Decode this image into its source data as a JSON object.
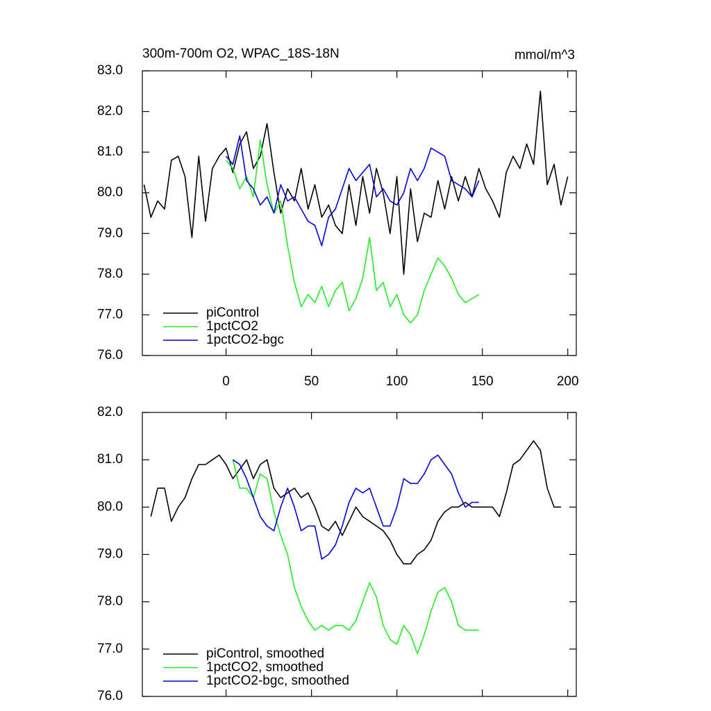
{
  "chart_data": [
    {
      "type": "line",
      "title": "300m-700m O2, WPAC_18S-18N",
      "unit_label": "mmol/m^3",
      "xlim": [
        -49,
        205
      ],
      "ylim": [
        76,
        83
      ],
      "xticks": [
        0,
        50,
        100,
        150,
        200
      ],
      "show_xtick_labels": true,
      "yticks": [
        {
          "value": 76,
          "label": "76.0"
        },
        {
          "value": 77,
          "label": "77.0"
        },
        {
          "value": 78,
          "label": "78.0"
        },
        {
          "value": 79,
          "label": "79.0"
        },
        {
          "value": 80,
          "label": "80.0"
        },
        {
          "value": 81,
          "label": "81.0"
        },
        {
          "value": 82,
          "label": "82.0"
        },
        {
          "value": 83,
          "label": "83.0"
        }
      ],
      "legend": "lower left",
      "x": [
        -48,
        -44,
        -40,
        -36,
        -32,
        -28,
        -24,
        -20,
        -16,
        -12,
        -8,
        -4,
        0,
        4,
        8,
        12,
        16,
        20,
        24,
        28,
        32,
        36,
        40,
        44,
        48,
        52,
        56,
        60,
        64,
        68,
        72,
        76,
        80,
        84,
        88,
        92,
        96,
        100,
        104,
        108,
        112,
        116,
        120,
        124,
        128,
        132,
        136,
        140,
        144,
        148,
        152,
        156,
        160,
        164,
        168,
        172,
        176,
        180,
        184,
        188,
        192,
        196,
        200
      ],
      "series": [
        {
          "name": "piControl",
          "color": "#000000",
          "values": [
            80.2,
            79.4,
            79.8,
            79.6,
            80.8,
            80.9,
            80.4,
            78.9,
            80.9,
            79.3,
            80.6,
            80.9,
            81.1,
            80.5,
            81.2,
            81.5,
            80.6,
            80.9,
            81.7,
            80.5,
            79.5,
            80.1,
            79.8,
            80.6,
            79.6,
            80.2,
            79.4,
            79.7,
            79.2,
            79.0,
            80.2,
            79.2,
            80.4,
            79.5,
            80.6,
            80.0,
            79.0,
            80.4,
            78.0,
            80.1,
            78.8,
            79.5,
            79.4,
            80.3,
            79.6,
            80.4,
            79.8,
            80.4,
            79.9,
            80.6,
            80.1,
            79.8,
            79.4,
            80.5,
            80.9,
            80.6,
            81.2,
            80.7,
            82.5,
            80.2,
            80.7,
            79.7,
            80.4
          ]
        },
        {
          "name": "1pctCO2",
          "color": "#22ee22",
          "values": [
            null,
            null,
            null,
            null,
            null,
            null,
            null,
            null,
            null,
            null,
            null,
            null,
            80.8,
            80.6,
            80.1,
            80.4,
            79.9,
            81.3,
            80.2,
            79.5,
            79.8,
            78.7,
            77.8,
            77.2,
            77.5,
            77.3,
            77.7,
            77.2,
            77.6,
            77.8,
            77.1,
            77.4,
            77.9,
            78.9,
            77.6,
            77.8,
            77.2,
            77.5,
            77.0,
            76.8,
            77.0,
            77.6,
            78.0,
            78.4,
            78.2,
            77.9,
            77.5,
            77.3,
            77.4,
            77.5,
            null,
            null,
            null,
            null,
            null,
            null,
            null,
            null,
            null,
            null,
            null,
            null,
            null
          ]
        },
        {
          "name": "1pctCO2-bgc",
          "color": "#0000dd",
          "values": [
            null,
            null,
            null,
            null,
            null,
            null,
            null,
            null,
            null,
            null,
            null,
            null,
            80.9,
            80.7,
            81.4,
            80.3,
            80.1,
            79.7,
            79.9,
            79.5,
            80.2,
            79.8,
            79.9,
            79.6,
            79.3,
            79.2,
            78.7,
            79.4,
            79.6,
            80.1,
            80.6,
            80.3,
            80.5,
            80.7,
            79.9,
            80.1,
            79.8,
            79.7,
            80.0,
            80.6,
            80.3,
            80.6,
            81.1,
            81.0,
            80.9,
            80.3,
            80.2,
            80.1,
            79.9,
            80.3,
            null,
            null,
            null,
            null,
            null,
            null,
            null,
            null,
            null,
            null,
            null,
            null,
            null
          ]
        }
      ]
    },
    {
      "type": "line",
      "xlim": [
        -49,
        205
      ],
      "ylim": [
        76,
        82
      ],
      "xticks": [
        0,
        50,
        100,
        150,
        200
      ],
      "show_xtick_labels": false,
      "yticks": [
        {
          "value": 76,
          "label": "76.0"
        },
        {
          "value": 77,
          "label": "77.0"
        },
        {
          "value": 78,
          "label": "78.0"
        },
        {
          "value": 79,
          "label": "79.0"
        },
        {
          "value": 80,
          "label": "80.0"
        },
        {
          "value": 81,
          "label": "81.0"
        },
        {
          "value": 82,
          "label": "82.0"
        }
      ],
      "legend": "lower left",
      "x": [
        -48,
        -44,
        -40,
        -36,
        -32,
        -28,
        -24,
        -20,
        -16,
        -12,
        -8,
        -4,
        0,
        4,
        8,
        12,
        16,
        20,
        24,
        28,
        32,
        36,
        40,
        44,
        48,
        52,
        56,
        60,
        64,
        68,
        72,
        76,
        80,
        84,
        88,
        92,
        96,
        100,
        104,
        108,
        112,
        116,
        120,
        124,
        128,
        132,
        136,
        140,
        144,
        148,
        152,
        156,
        160,
        164,
        168,
        172,
        176,
        180,
        184,
        188,
        192,
        196,
        200
      ],
      "series": [
        {
          "name": "piControl, smoothed",
          "color": "#000000",
          "values": [
            null,
            79.8,
            80.4,
            80.4,
            79.7,
            80.0,
            80.2,
            80.6,
            80.9,
            80.9,
            81.0,
            81.1,
            80.9,
            80.6,
            80.8,
            81.0,
            80.6,
            80.9,
            81.0,
            80.4,
            80.2,
            80.3,
            80.4,
            80.2,
            80.3,
            80.0,
            79.6,
            79.5,
            79.7,
            79.4,
            79.7,
            80.0,
            79.8,
            79.7,
            79.6,
            79.5,
            79.3,
            79.0,
            78.8,
            78.8,
            79.0,
            79.1,
            79.3,
            79.7,
            79.9,
            80.0,
            80.0,
            80.1,
            80.0,
            80.0,
            80.0,
            80.0,
            79.8,
            80.3,
            80.9,
            81.0,
            81.2,
            81.4,
            81.2,
            80.4,
            80.0,
            80.0,
            null
          ]
        },
        {
          "name": "1pctCO2, smoothed",
          "color": "#22ee22",
          "values": [
            null,
            null,
            null,
            null,
            null,
            null,
            null,
            null,
            null,
            null,
            null,
            null,
            null,
            81.0,
            80.4,
            80.4,
            80.2,
            80.7,
            80.6,
            79.9,
            79.4,
            79.0,
            78.3,
            77.9,
            77.6,
            77.4,
            77.5,
            77.4,
            77.5,
            77.5,
            77.4,
            77.6,
            78.0,
            78.4,
            78.1,
            77.5,
            77.2,
            77.1,
            77.5,
            77.3,
            76.9,
            77.3,
            77.8,
            78.2,
            78.3,
            78.0,
            77.5,
            77.4,
            77.4,
            77.4,
            null,
            null,
            null,
            null,
            null,
            null,
            null,
            null,
            null,
            null,
            null,
            null,
            null
          ]
        },
        {
          "name": "1pctCO2-bgc, smoothed",
          "color": "#0000dd",
          "values": [
            null,
            null,
            null,
            null,
            null,
            null,
            null,
            null,
            null,
            null,
            null,
            null,
            null,
            81.0,
            80.9,
            80.6,
            80.2,
            79.8,
            79.6,
            79.5,
            80.0,
            80.4,
            80.0,
            79.5,
            79.6,
            79.6,
            78.9,
            79.0,
            79.2,
            79.6,
            80.1,
            80.4,
            80.3,
            80.4,
            80.0,
            79.6,
            79.6,
            80.0,
            80.6,
            80.5,
            80.5,
            80.7,
            81.0,
            81.1,
            80.9,
            80.7,
            80.3,
            80.0,
            80.1,
            80.1,
            null,
            null,
            null,
            null,
            null,
            null,
            null,
            null,
            null,
            null,
            null,
            null,
            null
          ]
        }
      ]
    }
  ]
}
